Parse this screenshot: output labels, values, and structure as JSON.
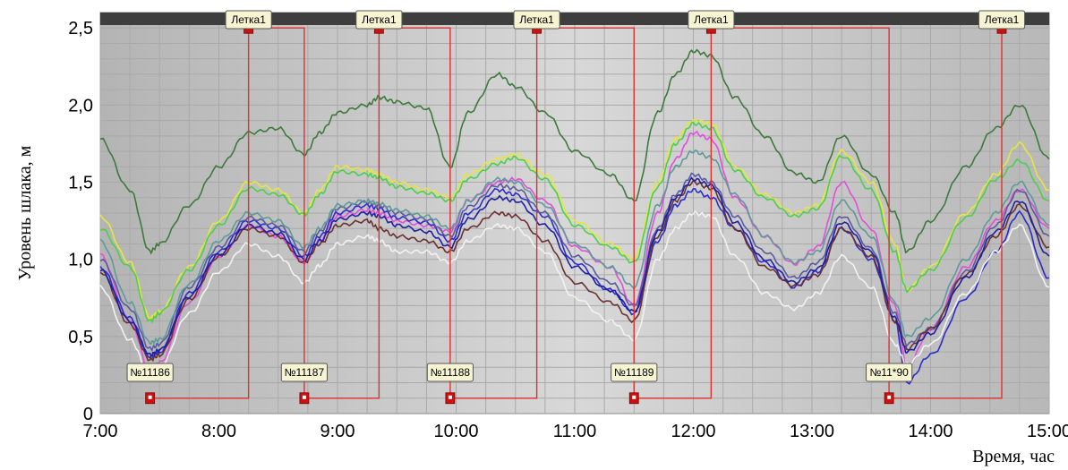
{
  "chart_data": {
    "type": "line",
    "title": "",
    "xlabel": "Время, час",
    "ylabel": "Уровень шлака, м",
    "xlim": [
      7.0,
      15.0
    ],
    "ylim": [
      0.0,
      2.6
    ],
    "x_ticks": [
      {
        "value": 7,
        "label": "7:00"
      },
      {
        "value": 8,
        "label": "8:00"
      },
      {
        "value": 9,
        "label": "9:00"
      },
      {
        "value": 10,
        "label": "10:00"
      },
      {
        "value": 11,
        "label": "11:00"
      },
      {
        "value": 12,
        "label": "12:00"
      },
      {
        "value": 13,
        "label": "13:00"
      },
      {
        "value": 14,
        "label": "14:00"
      },
      {
        "value": 15,
        "label": "15:00"
      }
    ],
    "y_ticks": [
      {
        "value": 0,
        "label": "0"
      },
      {
        "value": 0.5,
        "label": "0,5"
      },
      {
        "value": 1.0,
        "label": "1,0"
      },
      {
        "value": 1.5,
        "label": "1,5"
      },
      {
        "value": 2.0,
        "label": "2,0"
      },
      {
        "value": 2.5,
        "label": "2,5"
      }
    ],
    "grid": true,
    "legend": "none",
    "colors": {
      "background": "#c9c9c9",
      "grid": "#a9a9a9",
      "event_line": "#e03030",
      "marker": "#cc1111",
      "label_box": "#f6f4d2"
    },
    "x": [
      7.0,
      7.25,
      7.42,
      7.5,
      7.75,
      8.0,
      8.25,
      8.5,
      8.72,
      8.85,
      9.0,
      9.25,
      9.35,
      9.5,
      9.75,
      9.95,
      10.1,
      10.35,
      10.5,
      10.75,
      11.0,
      11.3,
      11.5,
      11.7,
      11.85,
      12.0,
      12.15,
      12.35,
      12.6,
      12.85,
      13.05,
      13.25,
      13.5,
      13.7,
      13.8,
      14.0,
      14.3,
      14.55,
      14.75,
      15.0
    ],
    "series": [
      {
        "color": "#3c7a3c",
        "values": [
          1.78,
          1.45,
          1.05,
          1.1,
          1.35,
          1.6,
          1.82,
          1.85,
          1.68,
          1.82,
          1.95,
          2.0,
          2.05,
          2.02,
          1.98,
          1.6,
          1.95,
          2.2,
          2.12,
          1.95,
          1.7,
          1.55,
          1.38,
          1.95,
          2.2,
          2.35,
          2.32,
          2.05,
          1.8,
          1.56,
          1.5,
          1.8,
          1.55,
          1.3,
          1.05,
          1.25,
          1.6,
          1.85,
          2.0,
          1.65
        ]
      },
      {
        "color": "#e6e640",
        "values": [
          1.28,
          0.98,
          0.62,
          0.66,
          0.95,
          1.25,
          1.5,
          1.45,
          1.3,
          1.45,
          1.6,
          1.58,
          1.55,
          1.5,
          1.45,
          1.4,
          1.55,
          1.65,
          1.68,
          1.55,
          1.25,
          1.1,
          1.0,
          1.5,
          1.78,
          1.9,
          1.88,
          1.6,
          1.42,
          1.3,
          1.35,
          1.7,
          1.5,
          1.1,
          0.8,
          0.95,
          1.3,
          1.55,
          1.75,
          1.45
        ]
      },
      {
        "color": "#4ccf4c",
        "values": [
          1.2,
          0.95,
          0.6,
          0.65,
          0.93,
          1.22,
          1.46,
          1.42,
          1.29,
          1.42,
          1.57,
          1.55,
          1.53,
          1.47,
          1.43,
          1.38,
          1.52,
          1.62,
          1.66,
          1.52,
          1.22,
          1.08,
          0.98,
          1.47,
          1.75,
          1.88,
          1.85,
          1.58,
          1.4,
          1.28,
          1.33,
          1.67,
          1.45,
          1.05,
          0.8,
          0.93,
          1.27,
          1.52,
          1.64,
          1.38
        ]
      },
      {
        "color": "#e24fd9",
        "values": [
          1.03,
          0.6,
          0.28,
          0.33,
          0.72,
          1.02,
          1.22,
          1.15,
          0.98,
          1.12,
          1.28,
          1.32,
          1.3,
          1.25,
          1.22,
          1.18,
          1.38,
          1.5,
          1.52,
          1.38,
          1.08,
          0.95,
          0.7,
          1.3,
          1.65,
          1.82,
          1.78,
          1.4,
          1.15,
          0.97,
          1.08,
          1.5,
          1.2,
          0.7,
          0.3,
          0.55,
          0.95,
          1.25,
          1.45,
          1.2
        ]
      },
      {
        "color": "#2c2ccc",
        "values": [
          0.95,
          0.62,
          0.37,
          0.4,
          0.78,
          1.05,
          1.25,
          1.2,
          1.02,
          1.15,
          1.3,
          1.35,
          1.33,
          1.27,
          1.24,
          1.12,
          1.3,
          1.45,
          1.42,
          1.28,
          0.98,
          0.8,
          0.65,
          1.12,
          1.35,
          1.45,
          1.4,
          1.2,
          0.98,
          0.82,
          0.92,
          1.2,
          1.0,
          0.6,
          0.2,
          0.38,
          0.75,
          1.05,
          1.3,
          0.88
        ]
      },
      {
        "color": "#5a5a9e",
        "values": [
          1.0,
          0.68,
          0.42,
          0.45,
          0.82,
          1.08,
          1.27,
          1.22,
          1.05,
          1.18,
          1.33,
          1.37,
          1.35,
          1.3,
          1.26,
          1.15,
          1.34,
          1.48,
          1.46,
          1.3,
          1.02,
          0.85,
          0.7,
          1.2,
          1.42,
          1.55,
          1.5,
          1.28,
          1.05,
          0.88,
          0.98,
          1.28,
          1.07,
          0.65,
          0.45,
          0.55,
          0.92,
          1.22,
          1.45,
          1.15
        ]
      },
      {
        "color": "#5d9b9b",
        "values": [
          1.12,
          0.72,
          0.46,
          0.48,
          0.84,
          1.12,
          1.3,
          1.25,
          1.08,
          1.2,
          1.35,
          1.38,
          1.36,
          1.32,
          1.28,
          1.2,
          1.38,
          1.52,
          1.5,
          1.35,
          1.1,
          0.95,
          0.82,
          1.35,
          1.6,
          1.7,
          1.66,
          1.42,
          1.15,
          0.98,
          1.05,
          1.38,
          1.15,
          0.72,
          0.5,
          0.62,
          1.0,
          1.3,
          1.5,
          1.22
        ]
      },
      {
        "color": "#6b3030",
        "values": [
          0.92,
          0.58,
          0.35,
          0.38,
          0.74,
          1.02,
          1.2,
          1.15,
          0.98,
          1.1,
          1.22,
          1.25,
          1.2,
          1.15,
          1.12,
          1.05,
          1.2,
          1.3,
          1.28,
          1.12,
          0.85,
          0.72,
          0.6,
          1.15,
          1.38,
          1.5,
          1.46,
          1.2,
          0.95,
          0.83,
          0.9,
          1.2,
          1.02,
          0.6,
          0.42,
          0.55,
          0.9,
          1.15,
          1.35,
          1.08
        ]
      },
      {
        "color": "#2020a0",
        "values": [
          0.93,
          0.6,
          0.38,
          0.41,
          0.76,
          1.03,
          1.22,
          1.17,
          1.0,
          1.12,
          1.26,
          1.3,
          1.28,
          1.22,
          1.18,
          1.08,
          1.26,
          1.4,
          1.38,
          1.22,
          0.95,
          0.8,
          0.66,
          1.18,
          1.4,
          1.52,
          1.48,
          1.24,
          1.0,
          0.85,
          0.94,
          1.24,
          1.05,
          0.62,
          0.4,
          0.52,
          0.88,
          1.18,
          1.38,
          1.02
        ]
      },
      {
        "color": "#f2f2f2",
        "values": [
          0.82,
          0.48,
          0.25,
          0.3,
          0.65,
          0.92,
          1.1,
          1.02,
          0.85,
          0.96,
          1.1,
          1.15,
          1.12,
          1.05,
          1.05,
          0.98,
          1.12,
          1.22,
          1.2,
          1.05,
          0.75,
          0.6,
          0.48,
          1.0,
          1.2,
          1.3,
          1.28,
          1.02,
          0.78,
          0.68,
          0.78,
          1.02,
          0.82,
          0.45,
          0.32,
          0.45,
          0.78,
          1.05,
          1.22,
          0.82
        ]
      }
    ],
    "tapholes": {
      "label": "Летка1",
      "events": [
        {
          "up": 8.25,
          "down": 8.72
        },
        {
          "up": 9.35,
          "down": 9.95
        },
        {
          "up": 10.68,
          "down": 11.5
        },
        {
          "up": 12.15,
          "down": 13.65
        },
        {
          "up": 14.6
        }
      ],
      "bottom_start": 7.42,
      "bottom_labels": [
        {
          "x": 7.42,
          "label": "№11186"
        },
        {
          "x": 8.72,
          "label": "№11187"
        },
        {
          "x": 9.95,
          "label": "№11188"
        },
        {
          "x": 11.5,
          "label": "№11189"
        },
        {
          "x": 13.65,
          "label": "№11*90"
        }
      ],
      "level_high": 2.5,
      "level_low": 0.1
    }
  }
}
